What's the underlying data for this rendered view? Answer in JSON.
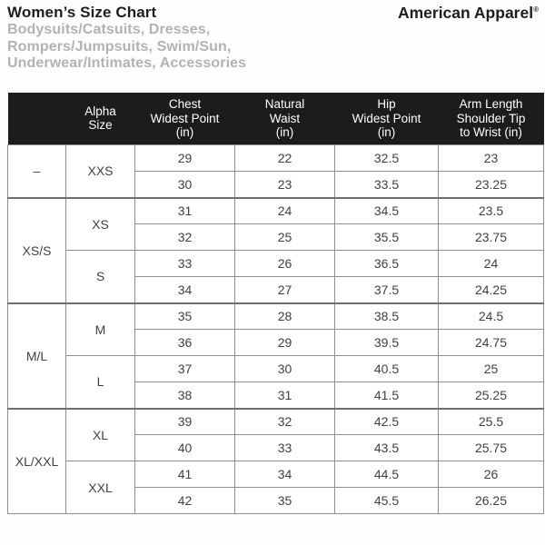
{
  "colors": {
    "header_bg": "#1c1c1c",
    "subtitle_text": "#b2b2b2",
    "body_text": "#404040",
    "border": "#8f8f8f",
    "group_border": "#6e6e6e"
  },
  "header": {
    "title": "Women’s Size Chart",
    "subtitle_lines": [
      "Bodysuits/Catsuits, Dresses,",
      "Rompers/Jumpsuits, Swim/Sun,",
      "Underwear/Intimates, Accessories"
    ],
    "brand": "American Apparel",
    "brand_mark": "®"
  },
  "table": {
    "column_headers": [
      {
        "lines": []
      },
      {
        "lines": [
          "Alpha",
          "Size"
        ]
      },
      {
        "lines": [
          "Chest",
          "Widest Point",
          "(in)"
        ]
      },
      {
        "lines": [
          "Natural",
          "Waist",
          "(in)"
        ]
      },
      {
        "lines": [
          "Hip",
          "Widest Point",
          "(in)"
        ]
      },
      {
        "lines": [
          "Arm Length",
          "Shoulder Tip",
          "to Wrist (in)"
        ]
      }
    ],
    "groups": [
      {
        "label": "–",
        "sizes": [
          {
            "alpha": "XXS",
            "measurements": [
              [
                "29",
                "22",
                "32.5",
                "23"
              ],
              [
                "30",
                "23",
                "33.5",
                "23.25"
              ]
            ]
          }
        ]
      },
      {
        "label": "XS/S",
        "sizes": [
          {
            "alpha": "XS",
            "measurements": [
              [
                "31",
                "24",
                "34.5",
                "23.5"
              ],
              [
                "32",
                "25",
                "35.5",
                "23.75"
              ]
            ]
          },
          {
            "alpha": "S",
            "measurements": [
              [
                "33",
                "26",
                "36.5",
                "24"
              ],
              [
                "34",
                "27",
                "37.5",
                "24.25"
              ]
            ]
          }
        ]
      },
      {
        "label": "M/L",
        "sizes": [
          {
            "alpha": "M",
            "measurements": [
              [
                "35",
                "28",
                "38.5",
                "24.5"
              ],
              [
                "36",
                "29",
                "39.5",
                "24.75"
              ]
            ]
          },
          {
            "alpha": "L",
            "measurements": [
              [
                "37",
                "30",
                "40.5",
                "25"
              ],
              [
                "38",
                "31",
                "41.5",
                "25.25"
              ]
            ]
          }
        ]
      },
      {
        "label": "XL/XXL",
        "sizes": [
          {
            "alpha": "XL",
            "measurements": [
              [
                "39",
                "32",
                "42.5",
                "25.5"
              ],
              [
                "40",
                "33",
                "43.5",
                "25.75"
              ]
            ]
          },
          {
            "alpha": "XXL",
            "measurements": [
              [
                "41",
                "34",
                "44.5",
                "26"
              ],
              [
                "42",
                "35",
                "45.5",
                "26.25"
              ]
            ]
          }
        ]
      }
    ]
  }
}
